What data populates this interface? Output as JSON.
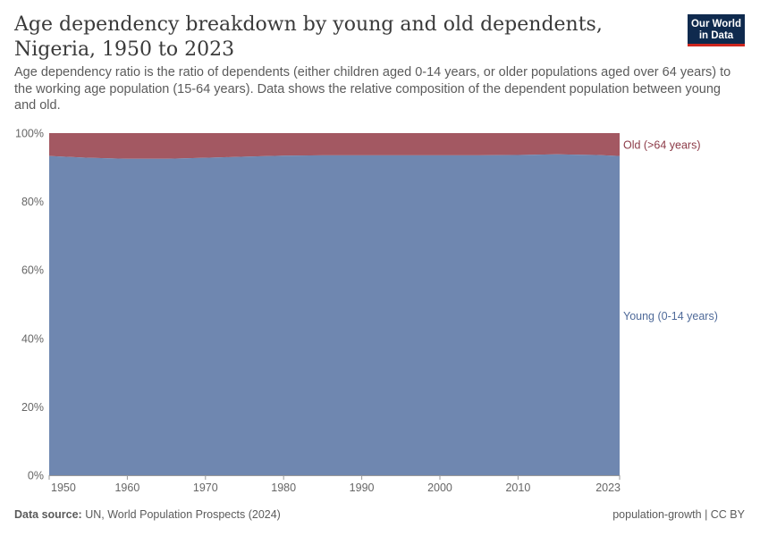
{
  "header": {
    "title": "Age dependency breakdown by young and old dependents, Nigeria, 1950 to 2023",
    "subtitle": "Age dependency ratio is the ratio of dependents (either children aged 0-14 years, or older populations aged over 64 years) to the working age population (15-64 years). Data shows the relative composition of the dependent population between young and old.",
    "logo_line1": "Our World",
    "logo_line2": "in Data"
  },
  "footer": {
    "source_label": "Data source:",
    "source_text": "UN, World Population Prospects (2024)",
    "license": "population-growth | CC BY"
  },
  "colors": {
    "young": "#6f87b0",
    "old": "#a35862",
    "young_label": "#4f6a99",
    "old_label": "#8c3a47"
  },
  "chart_data": {
    "type": "area",
    "stacked": true,
    "x": [
      1950,
      1955,
      1960,
      1965,
      1970,
      1975,
      1980,
      1985,
      1990,
      1995,
      2000,
      2005,
      2010,
      2015,
      2020,
      2023
    ],
    "series": [
      {
        "name": "Young (0-14 years)",
        "values": [
          93.3,
          92.8,
          92.5,
          92.5,
          92.8,
          93.1,
          93.4,
          93.5,
          93.5,
          93.5,
          93.5,
          93.5,
          93.6,
          93.8,
          93.6,
          93.3
        ]
      },
      {
        "name": "Old (>64 years)",
        "values": [
          6.7,
          7.2,
          7.5,
          7.5,
          7.2,
          6.9,
          6.6,
          6.5,
          6.5,
          6.5,
          6.5,
          6.5,
          6.4,
          6.2,
          6.4,
          6.7
        ]
      }
    ],
    "xticks": [
      1950,
      1960,
      1970,
      1980,
      1990,
      2000,
      2010,
      2023
    ],
    "yticks": [
      0,
      20,
      40,
      60,
      80,
      100
    ],
    "ytick_suffix": "%",
    "ylim": [
      0,
      100
    ],
    "xlim": [
      1950,
      2023
    ],
    "legend": "right-side labels"
  }
}
